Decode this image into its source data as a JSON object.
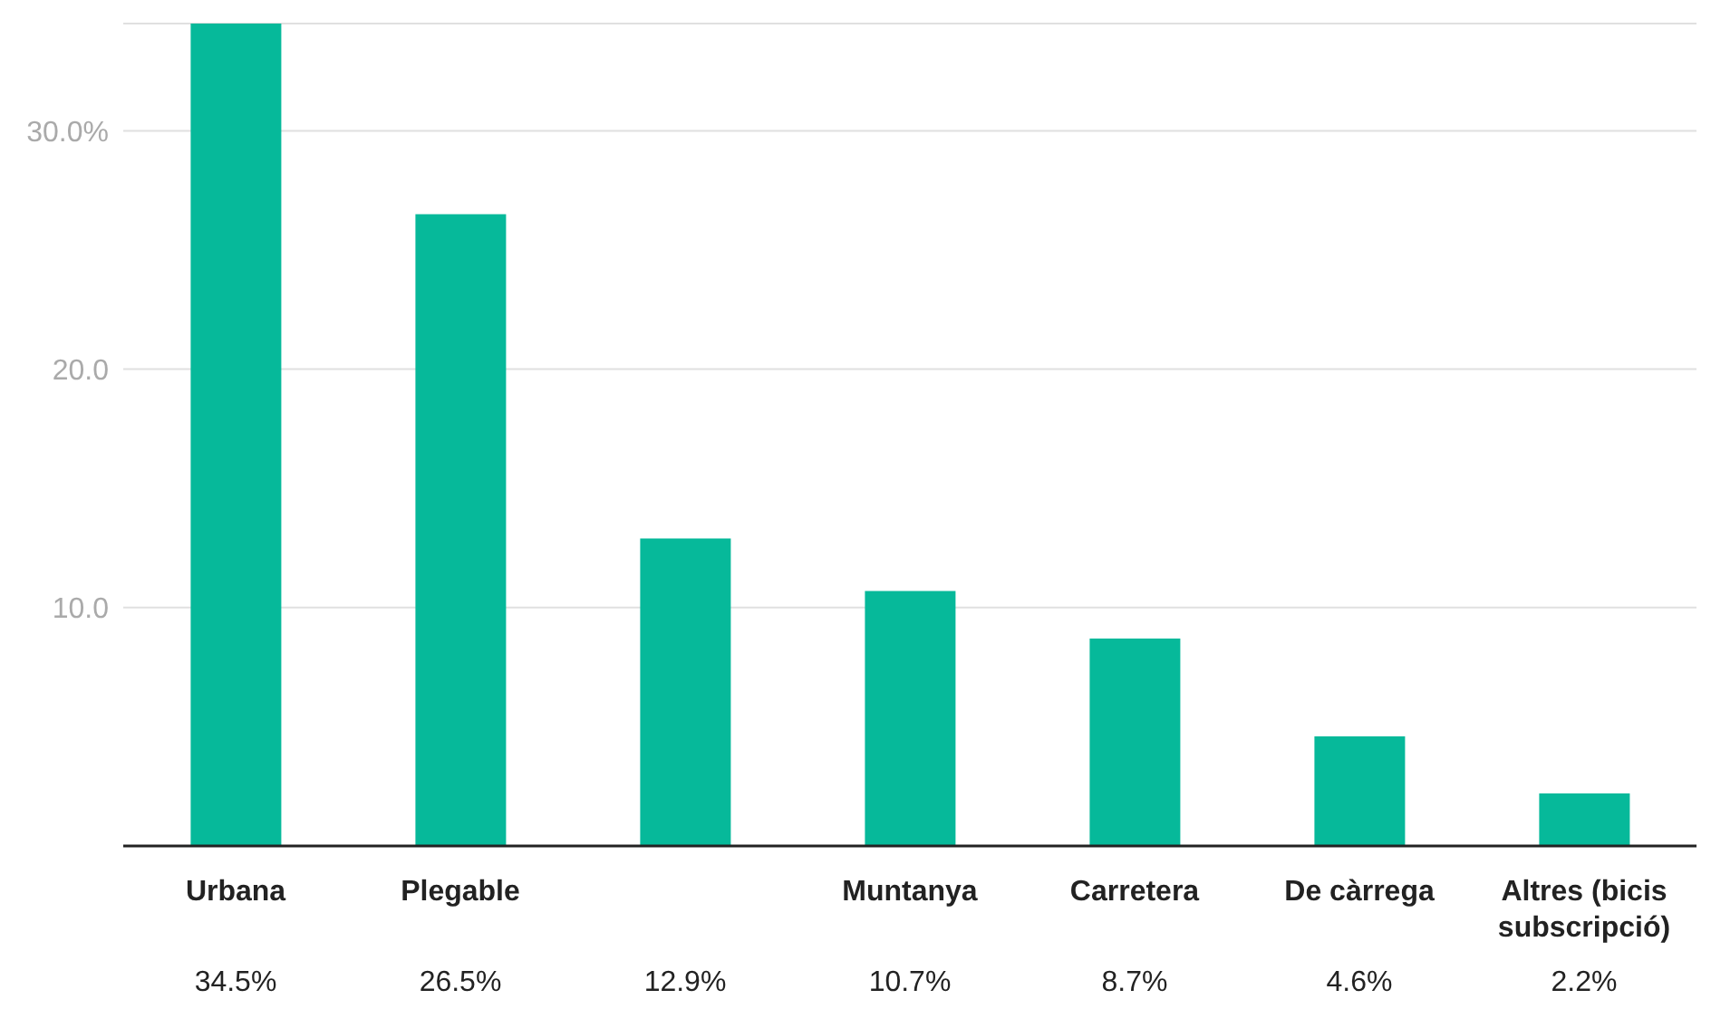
{
  "chart_data": {
    "type": "bar",
    "categories": [
      "Urbana",
      "Plegable",
      null,
      "Muntanya",
      "Carretera",
      "De càrrega",
      "Altres (bicis subscripció)"
    ],
    "values": [
      34.5,
      26.5,
      12.9,
      10.7,
      8.7,
      4.6,
      2.2
    ],
    "value_labels": [
      "34.5%",
      "26.5%",
      "12.9%",
      "10.7%",
      "8.7%",
      "4.6%",
      "2.2%"
    ],
    "color": "#06b99a",
    "ylim": [
      0,
      34.5
    ],
    "yticks": [
      {
        "value": 0,
        "label": null
      },
      {
        "value": 10,
        "label": "10.0"
      },
      {
        "value": 20,
        "label": "20.0"
      },
      {
        "value": 30,
        "label": "30.0%"
      }
    ],
    "grid": "y"
  }
}
